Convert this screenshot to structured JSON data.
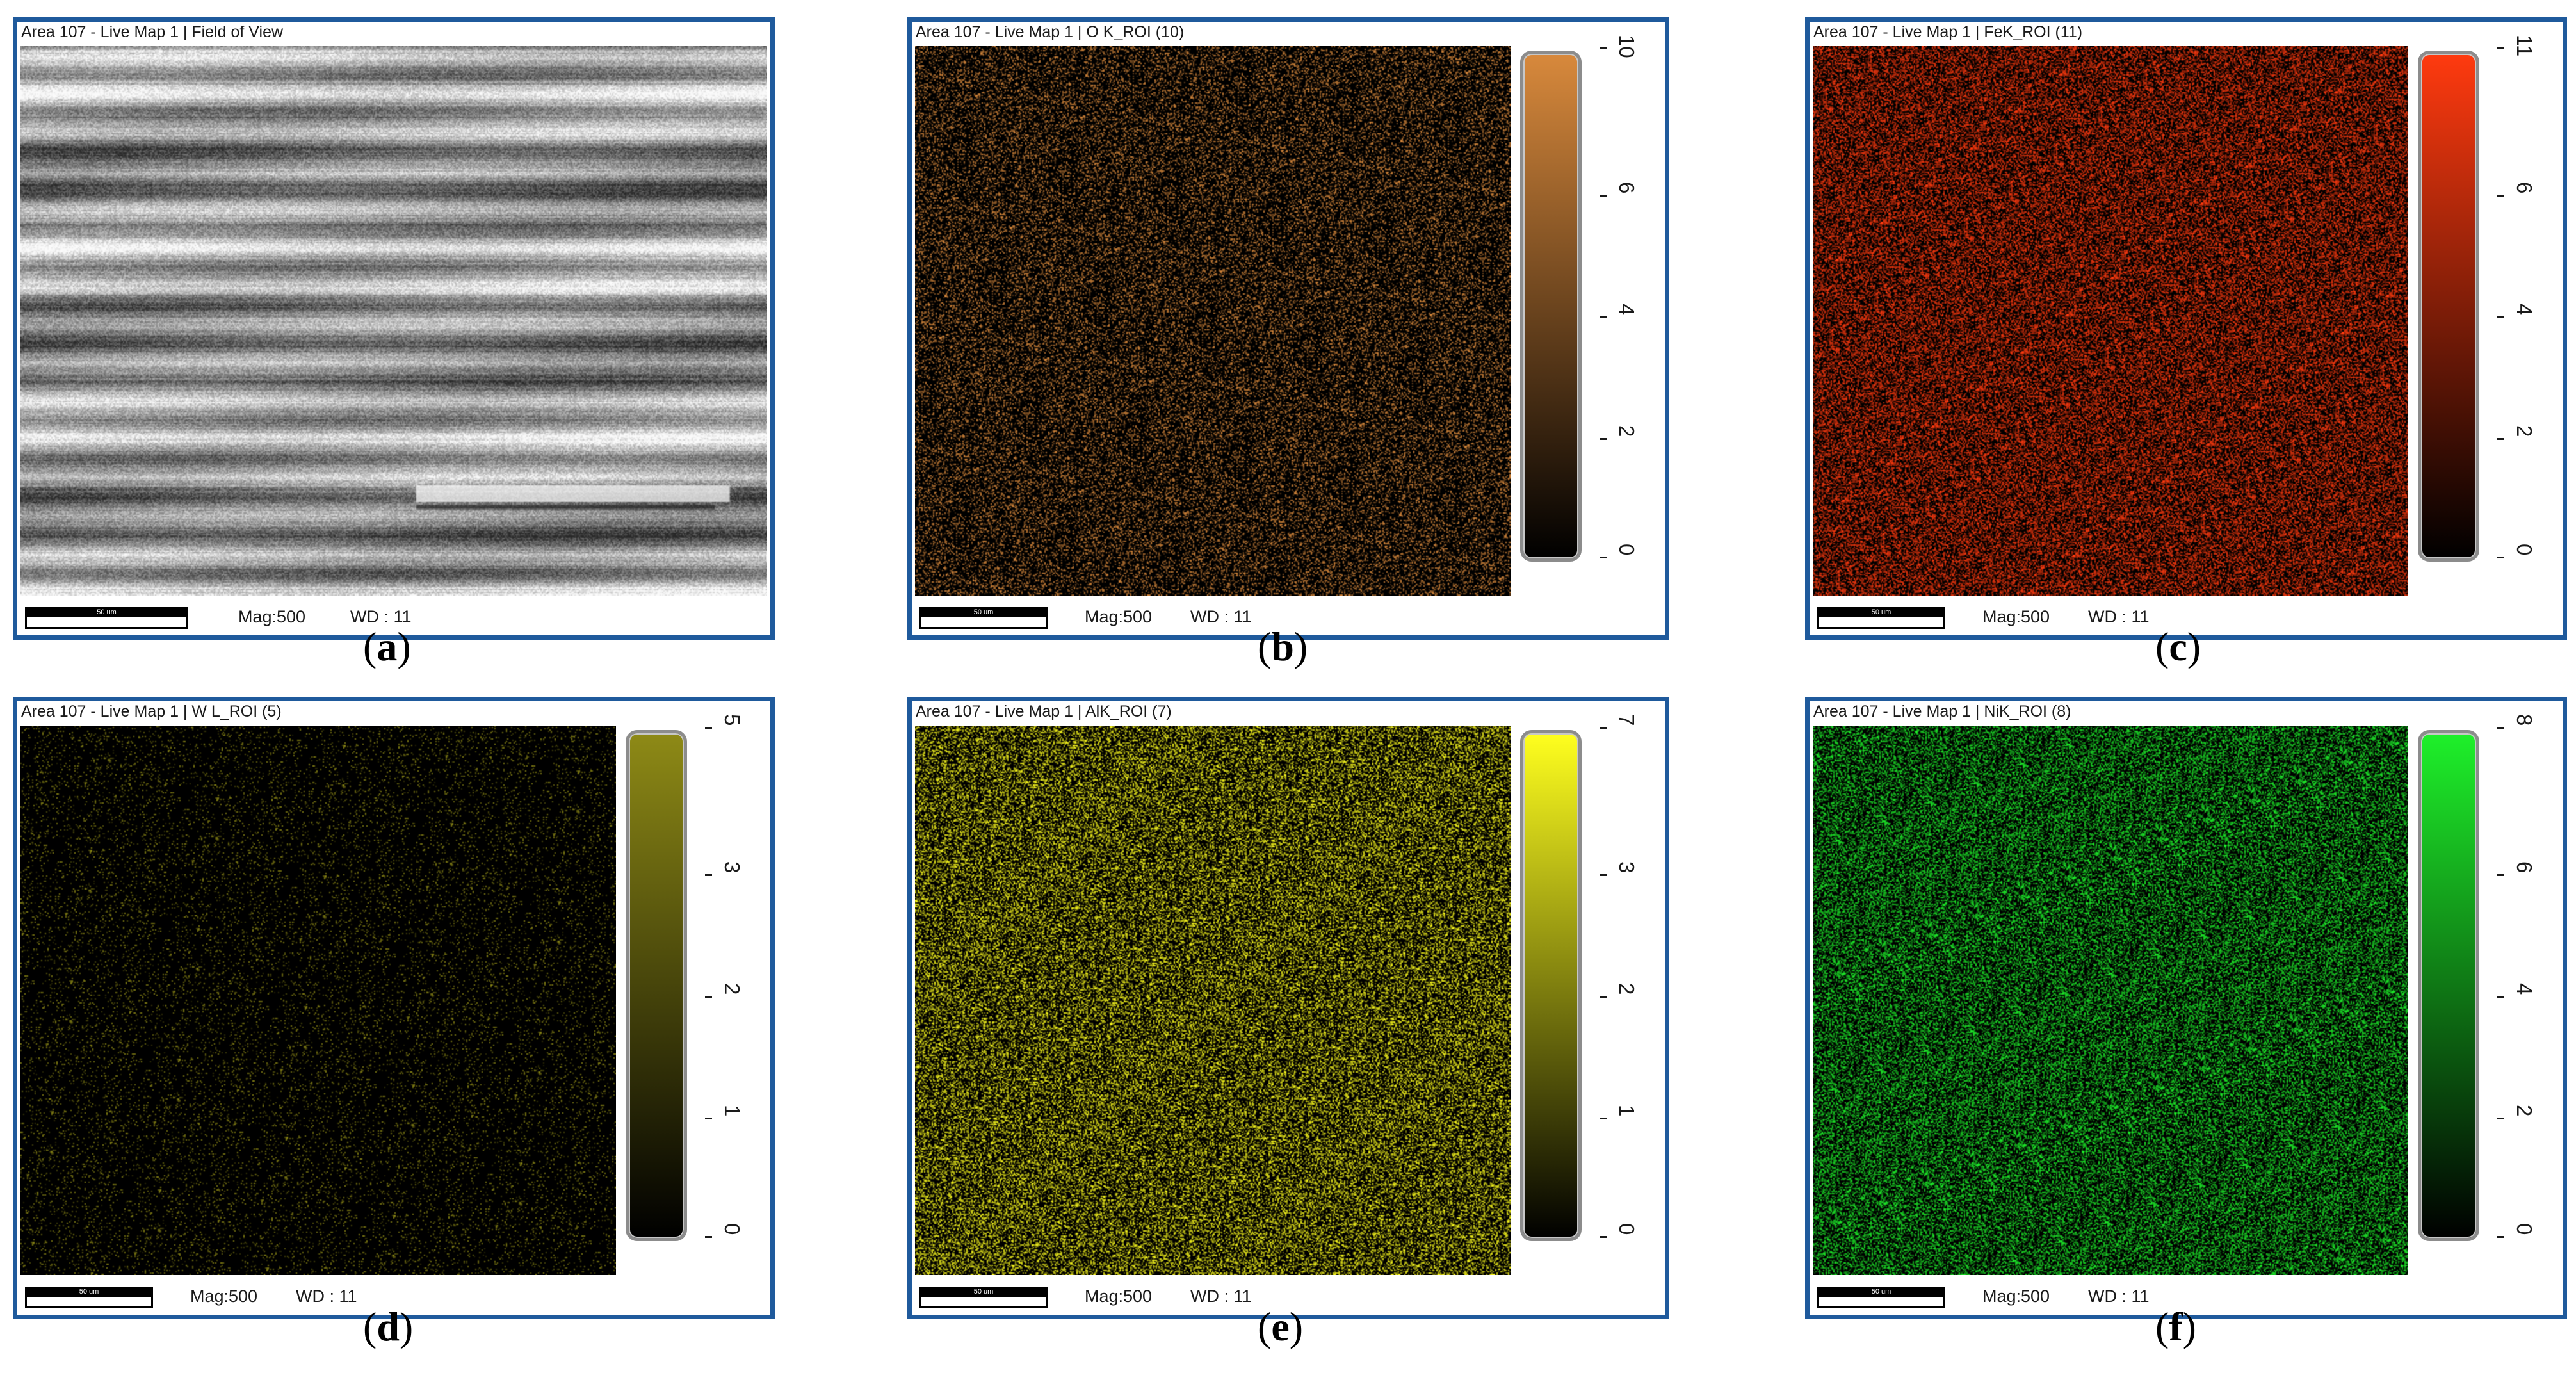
{
  "panels": [
    {
      "key": "a",
      "title": "Area 107 - Live Map 1 | Field of View",
      "scale_label": "50 um",
      "mag": "Mag:500",
      "wd": "WD : 11",
      "caption_letter": "a",
      "kind": "sem",
      "color_dark": "#1a1a1a",
      "color": "#f2f2f2",
      "ticks": []
    },
    {
      "key": "b",
      "title": "Area 107 - Live Map 1 | O K_ROI (10)",
      "scale_label": "50 um",
      "mag": "Mag:500",
      "wd": "WD : 11",
      "caption_letter": "b",
      "kind": "map",
      "color": "#d8893c",
      "ticks": [
        "10",
        "6",
        "4",
        "2",
        "0"
      ]
    },
    {
      "key": "c",
      "title": "Area 107 - Live Map 1 | FeK_ROI (11)",
      "scale_label": "50 um",
      "mag": "Mag:500",
      "wd": "WD : 11",
      "caption_letter": "c",
      "kind": "map",
      "color": "#ff3a0f",
      "ticks": [
        "11",
        "6",
        "4",
        "2",
        "0"
      ]
    },
    {
      "key": "d",
      "title": "Area 107 - Live Map 1 | W L_ROI (5)",
      "scale_label": "50 um",
      "mag": "Mag:500",
      "wd": "WD : 11",
      "caption_letter": "d",
      "kind": "map",
      "color": "#8e8a16",
      "ticks": [
        "5",
        "3",
        "2",
        "1",
        "0"
      ]
    },
    {
      "key": "e",
      "title": "Area 107 - Live Map 1 | AlK_ROI (7)",
      "scale_label": "50 um",
      "mag": "Mag:500",
      "wd": "WD : 11",
      "caption_letter": "e",
      "kind": "map",
      "color": "#ffff1e",
      "ticks": [
        "7",
        "3",
        "2",
        "1",
        "0"
      ]
    },
    {
      "key": "f",
      "title": "Area 107 - Live Map 1 | NiK_ROI (8)",
      "scale_label": "50 um",
      "mag": "Mag:500",
      "wd": "WD : 11",
      "caption_letter": "f",
      "kind": "map",
      "color": "#1ef02a",
      "ticks": [
        "8",
        "6",
        "4",
        "2",
        "0"
      ]
    }
  ]
}
